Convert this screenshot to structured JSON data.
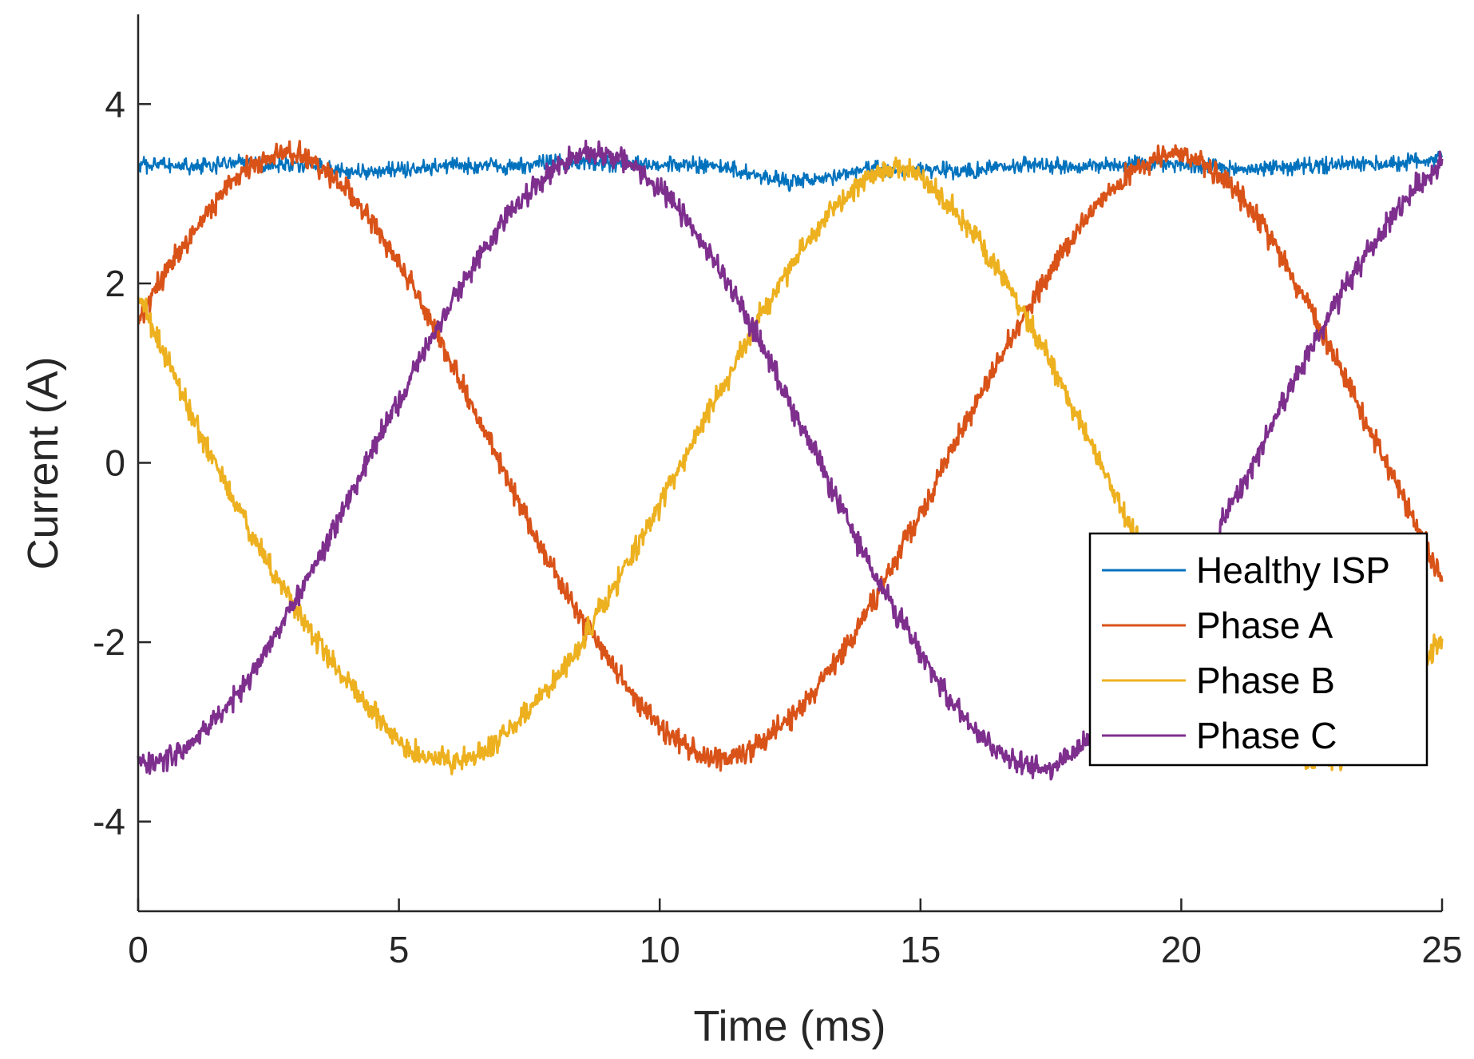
{
  "chart_data": {
    "type": "line",
    "title": "",
    "xlabel": "Time (ms)",
    "ylabel": "Current (A)",
    "xlim": [
      0,
      25
    ],
    "ylim": [
      -5,
      5
    ],
    "xticks": [
      0,
      5,
      10,
      15,
      20,
      25
    ],
    "yticks": [
      -4,
      -2,
      0,
      2,
      4
    ],
    "xtick_labels": [
      "0",
      "5",
      "10",
      "15",
      "20",
      "25"
    ],
    "ytick_labels": [
      "-4",
      "-2",
      "0",
      "2",
      "4"
    ],
    "grid": false,
    "legend_position": "right-lower",
    "series": [
      {
        "name": "Healthy ISP",
        "color": "#0072BD",
        "x": [
          0,
          1,
          2,
          3,
          4,
          5,
          6,
          7,
          8,
          9,
          10,
          11,
          12,
          12.5,
          13,
          13.5,
          14,
          15,
          16,
          17,
          18,
          19,
          20,
          21,
          22,
          23,
          24,
          25
        ],
        "y": [
          3.32,
          3.3,
          3.34,
          3.33,
          3.25,
          3.26,
          3.32,
          3.3,
          3.35,
          3.34,
          3.33,
          3.32,
          3.2,
          3.12,
          3.15,
          3.22,
          3.28,
          3.27,
          3.25,
          3.33,
          3.3,
          3.34,
          3.33,
          3.27,
          3.3,
          3.32,
          3.33,
          3.4
        ]
      },
      {
        "name": "Phase A",
        "color": "#D95319",
        "x": [
          0,
          0.5,
          1,
          1.5,
          2,
          2.5,
          3,
          3.5,
          4,
          4.5,
          5,
          5.5,
          6,
          6.5,
          7,
          7.5,
          8,
          8.5,
          9,
          9.5,
          10,
          10.5,
          11,
          11.5,
          12,
          12.5,
          13,
          13.5,
          14,
          14.5,
          15,
          15.5,
          16,
          16.5,
          17,
          17.5,
          18,
          18.5,
          19,
          19.5,
          20,
          20.5,
          21,
          21.5,
          22,
          22.5,
          23,
          23.5,
          24,
          24.5,
          25
        ],
        "y": [
          1.6,
          2.1,
          2.55,
          2.95,
          3.25,
          3.42,
          3.45,
          3.3,
          3.05,
          2.65,
          2.2,
          1.68,
          1.1,
          0.5,
          -0.1,
          -0.7,
          -1.25,
          -1.75,
          -2.2,
          -2.6,
          -2.95,
          -3.18,
          -3.3,
          -3.28,
          -3.1,
          -2.85,
          -2.5,
          -2.1,
          -1.62,
          -1.1,
          -0.55,
          0.05,
          0.6,
          1.15,
          1.68,
          2.15,
          2.58,
          2.95,
          3.22,
          3.42,
          3.45,
          3.3,
          3.05,
          2.68,
          2.2,
          1.65,
          1.1,
          0.5,
          -0.1,
          -0.7,
          -1.35
        ]
      },
      {
        "name": "Phase B",
        "color": "#EDB120",
        "x": [
          0,
          0.5,
          1,
          1.5,
          2,
          2.5,
          3,
          3.5,
          4,
          4.5,
          5,
          5.5,
          6,
          6.5,
          7,
          7.5,
          8,
          8.5,
          9,
          9.5,
          10,
          10.5,
          11,
          11.5,
          12,
          12.5,
          13,
          13.5,
          14,
          14.5,
          15,
          15.5,
          16,
          16.5,
          17,
          17.5,
          18,
          18.5,
          19,
          19.5,
          20,
          20.5,
          21,
          21.5,
          22,
          22.5,
          23,
          23.5,
          24,
          24.5,
          25
        ],
        "y": [
          1.85,
          1.2,
          0.55,
          -0.05,
          -0.62,
          -1.15,
          -1.62,
          -2.05,
          -2.45,
          -2.8,
          -3.1,
          -3.3,
          -3.33,
          -3.25,
          -3.05,
          -2.75,
          -2.4,
          -2.0,
          -1.5,
          -1.0,
          -0.45,
          0.1,
          0.65,
          1.2,
          1.72,
          2.2,
          2.62,
          2.95,
          3.2,
          3.28,
          3.2,
          2.9,
          2.55,
          2.12,
          1.65,
          1.1,
          0.5,
          -0.1,
          -0.7,
          -1.25,
          -1.75,
          -2.2,
          -2.6,
          -2.95,
          -3.2,
          -3.33,
          -3.3,
          -3.1,
          -2.8,
          -2.4,
          -1.9
        ]
      },
      {
        "name": "Phase C",
        "color": "#7E2F8E",
        "x": [
          0,
          0.5,
          1,
          1.5,
          2,
          2.5,
          3,
          3.5,
          4,
          4.5,
          5,
          5.5,
          6,
          6.5,
          7,
          7.5,
          8,
          8.5,
          9,
          9.5,
          10,
          10.5,
          11,
          11.5,
          12,
          12.5,
          13,
          13.5,
          14,
          14.5,
          15,
          15.5,
          16,
          16.5,
          17,
          17.5,
          18,
          18.5,
          19,
          19.5,
          20,
          20.5,
          21,
          21.5,
          22,
          22.5,
          23,
          23.5,
          24,
          24.5,
          25
        ],
        "y": [
          -3.35,
          -3.3,
          -3.15,
          -2.85,
          -2.5,
          -2.05,
          -1.55,
          -1.0,
          -0.42,
          0.15,
          0.72,
          1.28,
          1.8,
          2.28,
          2.72,
          3.05,
          3.3,
          3.45,
          3.45,
          3.3,
          3.05,
          2.7,
          2.28,
          1.8,
          1.25,
          0.65,
          0.05,
          -0.55,
          -1.12,
          -1.65,
          -2.15,
          -2.6,
          -2.95,
          -3.22,
          -3.38,
          -3.38,
          -3.2,
          -2.9,
          -2.5,
          -2.05,
          -1.55,
          -1.0,
          -0.42,
          0.15,
          0.72,
          1.3,
          1.82,
          2.3,
          2.72,
          3.08,
          3.35
        ]
      }
    ]
  }
}
